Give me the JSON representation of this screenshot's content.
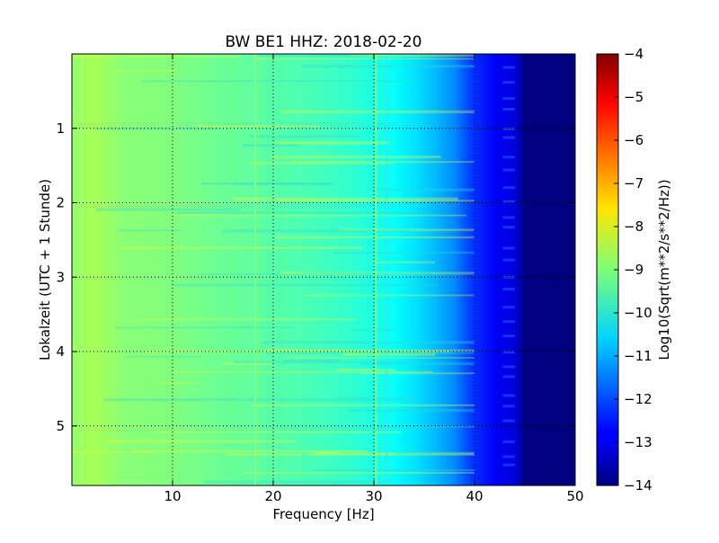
{
  "chart_data": {
    "type": "heatmap",
    "title": "BW BE1 HHZ: 2018-02-20",
    "xlabel": "Frequency [Hz]",
    "ylabel": "Lokalzeit (UTC + 1 Stunde)",
    "xlim": [
      0,
      50
    ],
    "ylim": [
      0,
      5.8
    ],
    "y_inverted": true,
    "x_ticks": [
      10,
      20,
      30,
      40,
      50
    ],
    "y_ticks": [
      1,
      2,
      3,
      4,
      5
    ],
    "grid": true,
    "colormap": "jet",
    "colorbar": {
      "label": "Log10(Sqrt(m**2/s**2/Hz))",
      "min": -14,
      "max": -4,
      "ticks": [
        -4,
        -5,
        -6,
        -7,
        -8,
        -9,
        -10,
        -11,
        -12,
        -13,
        -14
      ]
    },
    "spectrum_profile": {
      "frequency_hz": [
        0,
        2,
        5,
        10,
        15,
        20,
        25,
        28,
        30,
        32,
        34,
        36,
        38,
        39,
        40,
        42,
        44,
        45,
        50
      ],
      "level": [
        -8.8,
        -8.6,
        -8.9,
        -9.0,
        -9.2,
        -9.4,
        -9.6,
        -9.8,
        -10.0,
        -10.2,
        -10.5,
        -10.9,
        -11.4,
        -11.9,
        -12.3,
        -12.8,
        -13.1,
        -14.0,
        -14.0
      ]
    }
  }
}
